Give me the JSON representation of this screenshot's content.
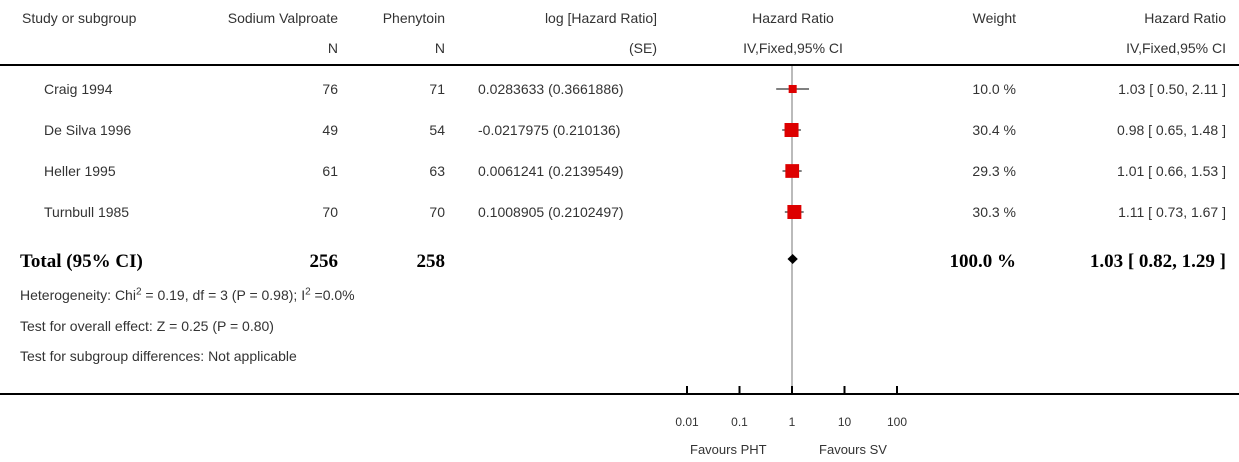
{
  "headers": {
    "study": "Study or subgroup",
    "group1": "Sodium Valproate",
    "group1_sub": "N",
    "group2": "Phenytoin",
    "group2_sub": "N",
    "loghr": "log [Hazard Ratio]",
    "loghr_sub": "(SE)",
    "hr_plot": "Hazard Ratio",
    "hr_plot_sub": "IV,Fixed,95% CI",
    "weight": "Weight",
    "hr_text": "Hazard Ratio",
    "hr_text_sub": "IV,Fixed,95% CI"
  },
  "studies": [
    {
      "name": "Craig 1994",
      "n1": "76",
      "n2": "71",
      "loghr": "0.0283633 (0.3661886)",
      "weight": "10.0 %",
      "ci_text": "1.03 [ 0.50, 2.11 ]"
    },
    {
      "name": "De Silva 1996",
      "n1": "49",
      "n2": "54",
      "loghr": "-0.0217975 (0.210136)",
      "weight": "30.4 %",
      "ci_text": "0.98 [ 0.65, 1.48 ]"
    },
    {
      "name": "Heller 1995",
      "n1": "61",
      "n2": "63",
      "loghr": "0.0061241 (0.2139549)",
      "weight": "29.3 %",
      "ci_text": "1.01 [ 0.66, 1.53 ]"
    },
    {
      "name": "Turnbull 1985",
      "n1": "70",
      "n2": "70",
      "loghr": "0.1008905 (0.2102497)",
      "weight": "30.3 %",
      "ci_text": "1.11 [ 0.73, 1.67 ]"
    }
  ],
  "total": {
    "label": "Total (95% CI)",
    "n1": "256",
    "n2": "258",
    "weight": "100.0 %",
    "ci_text": "1.03 [ 0.82, 1.29 ]"
  },
  "footnotes": {
    "heterogeneity_a": "Heterogeneity: Chi",
    "heterogeneity_sup1": "2",
    "heterogeneity_b": " = 0.19, df = 3 (P = 0.98); I",
    "heterogeneity_sup2": "2",
    "heterogeneity_c": " =0.0%",
    "overall": "Test for overall effect: Z = 0.25 (P = 0.80)",
    "subgroup": "Test for subgroup differences: Not applicable"
  },
  "axis": {
    "favours_left": "Favours PHT",
    "favours_right": "Favours SV"
  },
  "chart_data": {
    "type": "forest",
    "scale": "log",
    "xlim": [
      0.01,
      100
    ],
    "ticks": [
      0.01,
      0.1,
      1,
      10,
      100
    ],
    "tick_labels": [
      "0.01",
      "0.1",
      "1",
      "10",
      "100"
    ],
    "marker_color": "#dd0000",
    "studies": [
      {
        "name": "Craig 1994",
        "hr": 1.03,
        "lo": 0.5,
        "hi": 2.11,
        "weight": 10.0
      },
      {
        "name": "De Silva 1996",
        "hr": 0.98,
        "lo": 0.65,
        "hi": 1.48,
        "weight": 30.4
      },
      {
        "name": "Heller 1995",
        "hr": 1.01,
        "lo": 0.66,
        "hi": 1.53,
        "weight": 29.3
      },
      {
        "name": "Turnbull 1985",
        "hr": 1.11,
        "lo": 0.73,
        "hi": 1.67,
        "weight": 30.3
      }
    ],
    "pooled": {
      "hr": 1.03,
      "lo": 0.82,
      "hi": 1.29
    }
  }
}
